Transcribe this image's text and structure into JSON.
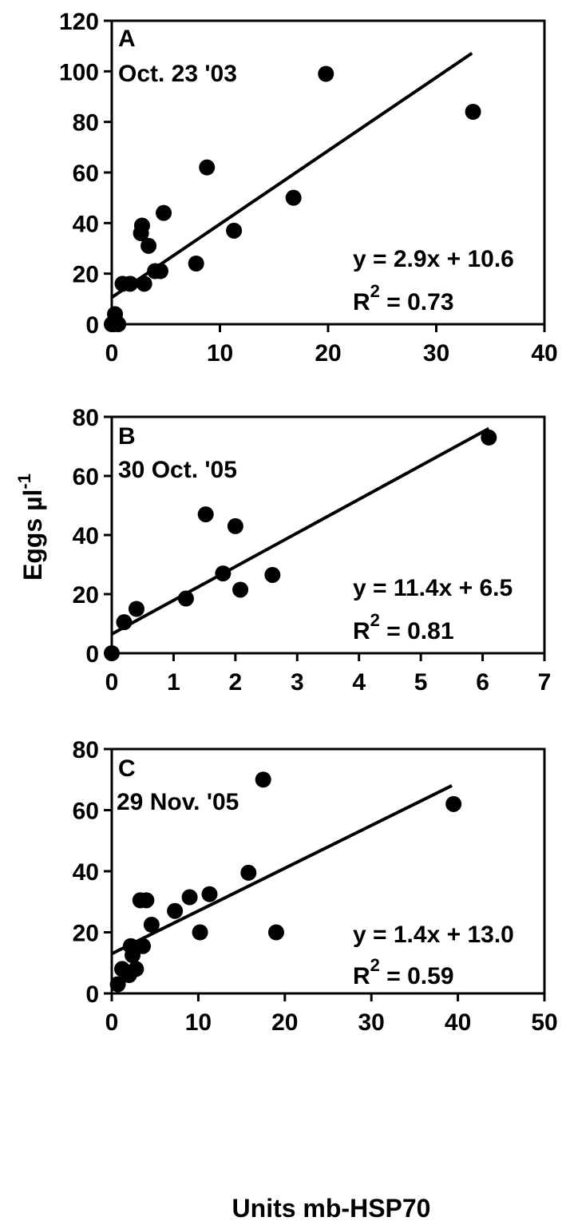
{
  "figure": {
    "ylabel": "Eggs µl",
    "ylabel_sup": "-1",
    "xlabel": "Units mb-HSP70"
  },
  "chart_data": [
    {
      "type": "scatter",
      "panel": "A",
      "date": "Oct. 23 '03",
      "xlim": [
        0,
        40
      ],
      "ylim": [
        0,
        120
      ],
      "xticks": [
        0,
        10,
        20,
        30,
        40
      ],
      "yticks": [
        0,
        20,
        40,
        60,
        80,
        100,
        120
      ],
      "points": [
        [
          0.0,
          0
        ],
        [
          0.2,
          0
        ],
        [
          0.4,
          1
        ],
        [
          0.6,
          0
        ],
        [
          0.3,
          4
        ],
        [
          1.0,
          16
        ],
        [
          1.7,
          16
        ],
        [
          2.7,
          36
        ],
        [
          2.8,
          39
        ],
        [
          3.0,
          16
        ],
        [
          3.4,
          31
        ],
        [
          4.0,
          21
        ],
        [
          4.5,
          21
        ],
        [
          4.8,
          44
        ],
        [
          7.8,
          24
        ],
        [
          8.8,
          62
        ],
        [
          11.3,
          37
        ],
        [
          16.8,
          50
        ],
        [
          19.8,
          99
        ],
        [
          33.4,
          84
        ]
      ],
      "fit": {
        "slope": 2.9,
        "intercept": 10.6,
        "x_range": [
          0,
          33.3
        ]
      },
      "equation": "y = 2.9x + 10.6",
      "r2_prefix": "R",
      "r2_sup": "2",
      "r2_value": " = 0.73"
    },
    {
      "type": "scatter",
      "panel": "B",
      "date": "30 Oct. '05",
      "xlim": [
        0,
        7
      ],
      "ylim": [
        0,
        80
      ],
      "xticks": [
        0,
        1,
        2,
        3,
        4,
        5,
        6,
        7
      ],
      "yticks": [
        0,
        20,
        40,
        60,
        80
      ],
      "points": [
        [
          0.0,
          0
        ],
        [
          0.2,
          10.5
        ],
        [
          0.4,
          15
        ],
        [
          1.2,
          18.5
        ],
        [
          1.52,
          47
        ],
        [
          1.8,
          27
        ],
        [
          2.0,
          43
        ],
        [
          2.08,
          21.5
        ],
        [
          2.6,
          26.5
        ],
        [
          6.1,
          73
        ]
      ],
      "fit": {
        "slope": 11.4,
        "intercept": 6.5,
        "x_range": [
          0,
          6.1
        ]
      },
      "equation": "y = 11.4x + 6.5",
      "r2_prefix": "R",
      "r2_sup": "2",
      "r2_value": " = 0.81"
    },
    {
      "type": "scatter",
      "panel": "C",
      "date": "29 Nov. '05",
      "xlim": [
        0,
        50
      ],
      "ylim": [
        0,
        80
      ],
      "xticks": [
        0,
        10,
        20,
        30,
        40,
        50
      ],
      "yticks": [
        0,
        20,
        40,
        60,
        80
      ],
      "points": [
        [
          0.7,
          3
        ],
        [
          1.2,
          8
        ],
        [
          2.0,
          6
        ],
        [
          2.2,
          15.5
        ],
        [
          2.4,
          12.5
        ],
        [
          2.8,
          8
        ],
        [
          3.3,
          30.5
        ],
        [
          3.6,
          15.5
        ],
        [
          4.0,
          30.5
        ],
        [
          4.6,
          22.5
        ],
        [
          7.3,
          27
        ],
        [
          9.0,
          31.5
        ],
        [
          10.2,
          20
        ],
        [
          11.3,
          32.5
        ],
        [
          15.8,
          39.5
        ],
        [
          17.5,
          70
        ],
        [
          19.0,
          20
        ],
        [
          39.5,
          62
        ]
      ],
      "fit": {
        "slope": 1.4,
        "intercept": 13.0,
        "x_range": [
          0,
          39.3
        ]
      },
      "equation": "y = 1.4x + 13.0",
      "r2_prefix": "R",
      "r2_sup": "2",
      "r2_value": " = 0.59"
    }
  ]
}
